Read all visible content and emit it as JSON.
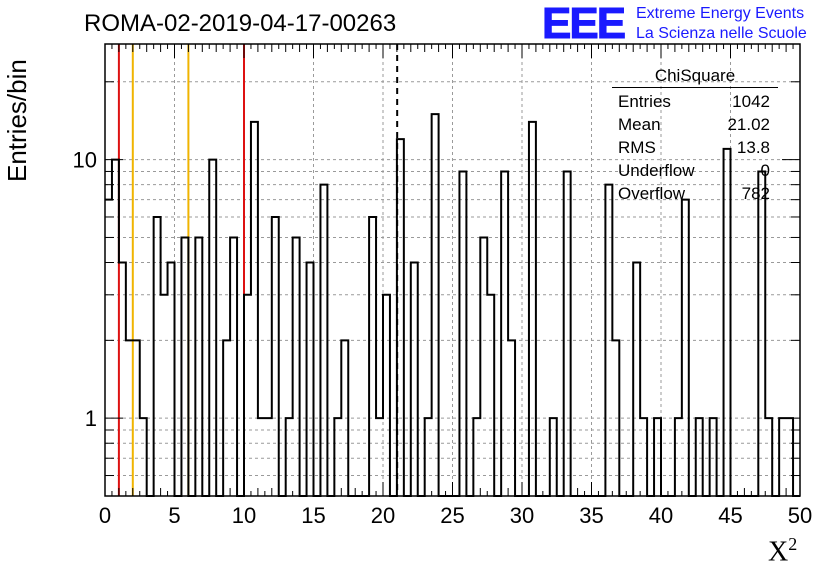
{
  "header": {
    "title": "ROMA-02-2019-04-17-00263",
    "logo": "EEE",
    "org_line1": "Extreme Energy Events",
    "org_line2": "La Scienza nelle Scuole"
  },
  "stats_box": {
    "name": "ChiSquare",
    "rows": [
      {
        "label": "Entries",
        "value": "1042"
      },
      {
        "label": "Mean",
        "value": "21.02"
      },
      {
        "label": "RMS",
        "value": "13.8"
      },
      {
        "label": "Underflow",
        "value": "0"
      },
      {
        "label": "Overflow",
        "value": "782"
      }
    ]
  },
  "colors": {
    "red_marker": "#dd1111",
    "orange_marker": "#f0b400",
    "histogram": "#000000",
    "grid": "#9a9a9a",
    "brand": "#1a1aff"
  },
  "chart_data": {
    "type": "bar",
    "histogram_style": "step",
    "title": "ROMA-02-2019-04-17-00263",
    "xlabel": "X",
    "xlabel_superscript": "2",
    "ylabel": "Entries/bin",
    "xlim": [
      0,
      50
    ],
    "ylim": [
      0.5,
      28
    ],
    "y_scale": "log",
    "grid": true,
    "bin_width": 0.5,
    "x_ticks": [
      0,
      5,
      10,
      15,
      20,
      25,
      30,
      35,
      40,
      45,
      50
    ],
    "y_ticks": [
      1,
      10
    ],
    "x_tick_labels": [
      "0",
      "5",
      "10",
      "15",
      "20",
      "25",
      "30",
      "35",
      "40",
      "45",
      "50"
    ],
    "y_tick_labels": [
      "1",
      "10"
    ],
    "bins": [
      [
        0.0,
        7
      ],
      [
        0.5,
        10
      ],
      [
        1.0,
        4
      ],
      [
        1.5,
        2
      ],
      [
        2.0,
        2
      ],
      [
        2.5,
        1
      ],
      [
        3.0,
        0
      ],
      [
        3.5,
        6
      ],
      [
        4.0,
        3
      ],
      [
        4.5,
        4
      ],
      [
        5.0,
        0
      ],
      [
        5.5,
        5
      ],
      [
        6.0,
        0
      ],
      [
        6.5,
        5
      ],
      [
        7.0,
        0
      ],
      [
        7.5,
        10
      ],
      [
        8.0,
        0
      ],
      [
        8.5,
        2
      ],
      [
        9.0,
        5
      ],
      [
        9.5,
        0
      ],
      [
        10.0,
        3
      ],
      [
        10.5,
        14
      ],
      [
        11.0,
        1
      ],
      [
        11.5,
        1
      ],
      [
        12.0,
        6
      ],
      [
        12.5,
        0
      ],
      [
        13.0,
        1
      ],
      [
        13.5,
        5
      ],
      [
        14.0,
        0
      ],
      [
        14.5,
        4
      ],
      [
        15.0,
        0
      ],
      [
        15.5,
        8
      ],
      [
        16.0,
        0
      ],
      [
        16.5,
        1
      ],
      [
        17.0,
        2
      ],
      [
        17.5,
        0
      ],
      [
        18.0,
        0
      ],
      [
        18.5,
        0
      ],
      [
        19.0,
        6
      ],
      [
        19.5,
        1
      ],
      [
        20.0,
        3
      ],
      [
        20.5,
        0
      ],
      [
        21.0,
        12
      ],
      [
        21.5,
        0
      ],
      [
        22.0,
        4
      ],
      [
        22.5,
        0
      ],
      [
        23.0,
        1
      ],
      [
        23.5,
        15
      ],
      [
        24.0,
        0
      ],
      [
        24.5,
        0
      ],
      [
        25.0,
        0
      ],
      [
        25.5,
        9
      ],
      [
        26.0,
        0
      ],
      [
        26.5,
        1
      ],
      [
        27.0,
        5
      ],
      [
        27.5,
        3
      ],
      [
        28.0,
        0
      ],
      [
        28.5,
        9
      ],
      [
        29.0,
        2
      ],
      [
        29.5,
        0
      ],
      [
        30.0,
        0
      ],
      [
        30.5,
        14
      ],
      [
        31.0,
        0
      ],
      [
        31.5,
        0
      ],
      [
        32.0,
        1
      ],
      [
        32.5,
        0
      ],
      [
        33.0,
        9
      ],
      [
        33.5,
        0
      ],
      [
        34.0,
        0
      ],
      [
        34.5,
        0
      ],
      [
        35.0,
        0
      ],
      [
        35.5,
        0
      ],
      [
        36.0,
        8
      ],
      [
        36.5,
        2
      ],
      [
        37.0,
        0
      ],
      [
        37.5,
        0
      ],
      [
        38.0,
        4
      ],
      [
        38.5,
        1
      ],
      [
        39.0,
        0
      ],
      [
        39.5,
        1
      ],
      [
        40.0,
        0
      ],
      [
        40.5,
        0
      ],
      [
        41.0,
        1
      ],
      [
        41.5,
        7
      ],
      [
        42.0,
        0
      ],
      [
        42.5,
        1
      ],
      [
        43.0,
        0
      ],
      [
        43.5,
        1
      ],
      [
        44.0,
        0
      ],
      [
        44.5,
        11
      ],
      [
        45.0,
        0
      ],
      [
        45.5,
        0
      ],
      [
        46.0,
        0
      ],
      [
        46.5,
        0
      ],
      [
        47.0,
        9
      ],
      [
        47.5,
        1
      ],
      [
        48.0,
        0
      ],
      [
        48.5,
        1
      ],
      [
        49.0,
        1
      ],
      [
        49.5,
        0
      ]
    ],
    "vertical_markers": [
      {
        "x": 1,
        "color": "red",
        "style": "solid"
      },
      {
        "x": 2,
        "color": "orange",
        "style": "solid"
      },
      {
        "x": 6,
        "color": "orange",
        "style": "solid"
      },
      {
        "x": 10,
        "color": "red",
        "style": "solid"
      },
      {
        "x": 21.02,
        "color": "black",
        "style": "dashed"
      }
    ]
  }
}
